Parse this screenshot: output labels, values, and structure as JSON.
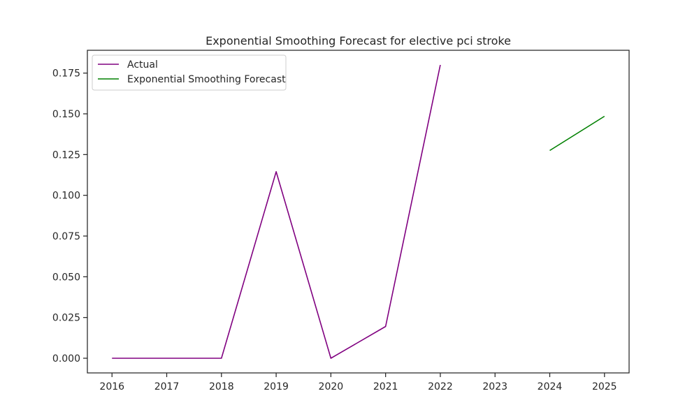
{
  "chart_data": {
    "type": "line",
    "title": "Exponential Smoothing Forecast for elective pci stroke",
    "xlabel": "",
    "ylabel": "",
    "xlim": [
      2015.55,
      2025.45
    ],
    "ylim": [
      -0.009,
      0.189
    ],
    "x_ticks": [
      "2016",
      "2017",
      "2018",
      "2019",
      "2020",
      "2021",
      "2022",
      "2023",
      "2024",
      "2025"
    ],
    "y_ticks": [
      "0.000",
      "0.025",
      "0.050",
      "0.075",
      "0.100",
      "0.125",
      "0.150",
      "0.175"
    ],
    "grid": false,
    "legend_position": "upper-left",
    "series": [
      {
        "name": "Actual",
        "color": "#800080",
        "x": [
          2016,
          2017,
          2018,
          2019,
          2020,
          2021,
          2022
        ],
        "y": [
          0.0,
          0.0,
          0.0,
          0.1145,
          0.0,
          0.0195,
          0.18
        ]
      },
      {
        "name": "Exponential Smoothing Forecast",
        "color": "#008000",
        "x": [
          2024,
          2025
        ],
        "y": [
          0.1275,
          0.1485
        ]
      }
    ]
  }
}
